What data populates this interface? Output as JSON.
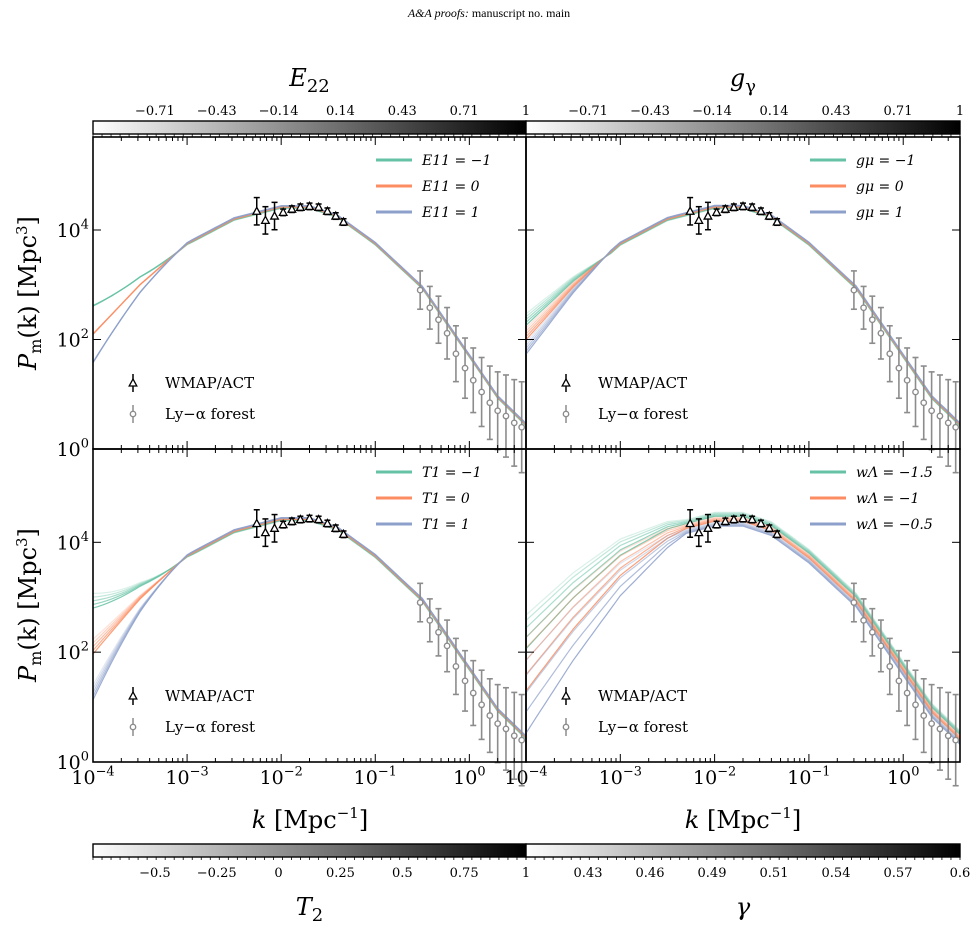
{
  "header": {
    "journal": "A&A proofs:",
    "rest": "manuscript no. main"
  },
  "colors": {
    "green": "#66c2a5",
    "orange": "#fc8d62",
    "blue": "#8da0cb",
    "gray": "#8c8c8c"
  },
  "axes": {
    "x_label_main": "k",
    "x_label_unit": "[Mpc",
    "x_label_exp": "−1",
    "x_label_close": "]",
    "y_label_main": "P",
    "y_label_sub": "m",
    "y_label_mid": "(k) [Mpc",
    "y_label_exp": "3",
    "y_label_close": "]",
    "x_ticks": [
      "10−4",
      "10−3",
      "10−2",
      "10−1",
      "100"
    ],
    "y_ticks": [
      "100",
      "102",
      "104"
    ]
  },
  "colorbars": {
    "top_left": {
      "label": "E22",
      "ticks": [
        "−0.71",
        "−0.43",
        "−0.14",
        "0.14",
        "0.43",
        "0.71",
        "1"
      ]
    },
    "top_right": {
      "label": "gγ",
      "ticks": [
        "−0.71",
        "−0.43",
        "−0.14",
        "0.14",
        "0.43",
        "0.71",
        "1"
      ]
    },
    "bottom_left": {
      "label": "T2",
      "ticks": [
        "−0.5",
        "−0.25",
        "0",
        "0.25",
        "0.5",
        "0.75",
        "1"
      ]
    },
    "bottom_right": {
      "label": "γ",
      "ticks": [
        "0.43",
        "0.46",
        "0.49",
        "0.51",
        "0.54",
        "0.57",
        "0.6"
      ]
    }
  },
  "data_legend": [
    "WMAP/ACT",
    "Ly−α forest"
  ],
  "panels": [
    {
      "id": "top-left",
      "legend": [
        "E11 = −1",
        "E11 = 0",
        "E11 = 1"
      ]
    },
    {
      "id": "top-right",
      "legend": [
        "gμ = −1",
        "gμ = 0",
        "gμ = 1"
      ]
    },
    {
      "id": "bottom-left",
      "legend": [
        "T1 = −1",
        "T1 = 0",
        "T1 = 1"
      ]
    },
    {
      "id": "bottom-right",
      "legend": [
        "wΛ = −1.5",
        "wΛ = −1",
        "wΛ = −0.5"
      ]
    }
  ],
  "chart_data": {
    "type": "line",
    "xscale": "log",
    "yscale": "log",
    "xlim": [
      0.0001,
      4
    ],
    "ylim": [
      1,
      500000
    ],
    "wmap_act": {
      "k": [
        0.0055,
        0.0068,
        0.0085,
        0.0105,
        0.013,
        0.016,
        0.02,
        0.025,
        0.031,
        0.038,
        0.046
      ],
      "P": [
        22000,
        15000,
        18000,
        21000,
        24000,
        26000,
        27000,
        26000,
        22000,
        18000,
        14000
      ]
    },
    "lya_forest": {
      "k": [
        0.3,
        0.38,
        0.47,
        0.58,
        0.72,
        0.9,
        1.1,
        1.35,
        1.65,
        2.0,
        2.45,
        3.0,
        3.6
      ],
      "P": [
        800,
        380,
        230,
        130,
        55,
        30,
        18,
        11,
        7,
        5,
        4,
        3,
        2.5
      ]
    }
  }
}
